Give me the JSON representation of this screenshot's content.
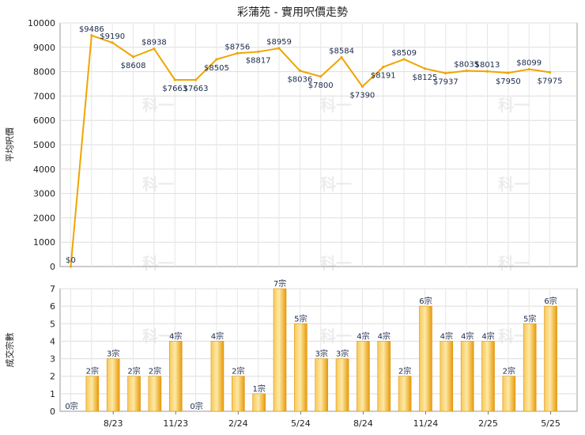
{
  "title": "彩蒲苑 - 實用呎價走勢",
  "chart_data": [
    {
      "type": "line",
      "ylabel": "平均呎價",
      "ylim": [
        0,
        10000
      ],
      "yticks": [
        "0",
        "1000",
        "2000",
        "3000",
        "4000",
        "5000",
        "6000",
        "7000",
        "8000",
        "9000",
        "10000"
      ],
      "grid": true,
      "color": "#f0a500",
      "values": [
        0,
        9486,
        9190,
        8608,
        8938,
        7663,
        7663,
        8505,
        8756,
        8817,
        8959,
        8036,
        7800,
        8584,
        7390,
        8191,
        8509,
        8125,
        7937,
        8035,
        8013,
        7950,
        8099,
        7975
      ],
      "labels": [
        "$0",
        "$9486",
        "$9190",
        "$8608",
        "$8938",
        "$7663",
        "$7663",
        "$8505",
        "$8756",
        "$8817",
        "$8959",
        "$8036",
        "$7800",
        "$8584",
        "$7390",
        "$8191",
        "$8509",
        "$8125",
        "$7937",
        "$8035",
        "$8013",
        "$7950",
        "$8099",
        "$7975"
      ]
    },
    {
      "type": "bar",
      "ylabel": "成交宗數",
      "ylim": [
        0,
        7
      ],
      "yticks": [
        "0",
        "1",
        "2",
        "3",
        "4",
        "5",
        "6",
        "7"
      ],
      "grid": true,
      "color": "#f0a500",
      "values": [
        0,
        2,
        3,
        2,
        2,
        4,
        0,
        4,
        2,
        1,
        7,
        5,
        3,
        3,
        4,
        4,
        2,
        6,
        4,
        4,
        4,
        2,
        5,
        6
      ],
      "labels": [
        "0宗",
        "2宗",
        "3宗",
        "2宗",
        "2宗",
        "4宗",
        "0宗",
        "4宗",
        "2宗",
        "1宗",
        "7宗",
        "5宗",
        "3宗",
        "3宗",
        "4宗",
        "4宗",
        "2宗",
        "6宗",
        "4宗",
        "4宗",
        "4宗",
        "2宗",
        "5宗",
        "6宗"
      ],
      "xticks": [
        {
          "index": 2,
          "label": "8/23"
        },
        {
          "index": 5,
          "label": "11/23"
        },
        {
          "index": 8,
          "label": "2/24"
        },
        {
          "index": 11,
          "label": "5/24"
        },
        {
          "index": 14,
          "label": "8/24"
        },
        {
          "index": 17,
          "label": "11/24"
        },
        {
          "index": 20,
          "label": "2/25"
        },
        {
          "index": 23,
          "label": "5/25"
        }
      ]
    }
  ],
  "watermark": "科一"
}
